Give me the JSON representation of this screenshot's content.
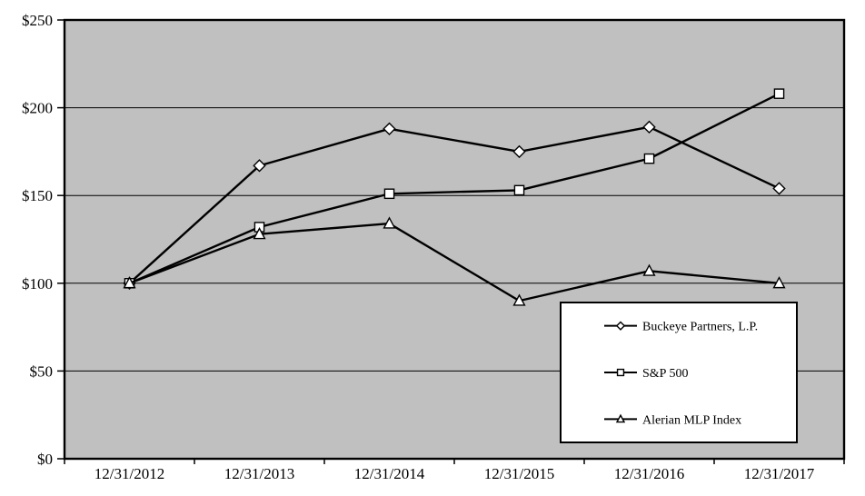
{
  "chart_data": {
    "type": "line",
    "categories": [
      "12/31/2012",
      "12/31/2013",
      "12/31/2014",
      "12/31/2015",
      "12/31/2016",
      "12/31/2017"
    ],
    "y_tick_labels": [
      "$0",
      "$50",
      "$100",
      "$150",
      "$200",
      "$250"
    ],
    "ylim": [
      0,
      250
    ],
    "y_tick_step": 50,
    "grid": true,
    "legend": {
      "position": "inside-bottom-right"
    },
    "series": [
      {
        "name": "Buckeye Partners, L.P.",
        "marker": "diamond",
        "values": [
          100,
          167,
          188,
          175,
          189,
          154
        ]
      },
      {
        "name": "S&P 500",
        "marker": "square",
        "values": [
          100,
          132,
          151,
          153,
          171,
          208
        ]
      },
      {
        "name": "Alerian MLP Index",
        "marker": "triangle",
        "values": [
          100,
          128,
          134,
          90,
          107,
          100
        ]
      }
    ],
    "colors": {
      "page_bg": "#ffffff",
      "plot_bg": "#c0c0c0",
      "line": "#000000",
      "marker_fill": "#ffffff",
      "legend_bg": "#ffffff"
    }
  }
}
